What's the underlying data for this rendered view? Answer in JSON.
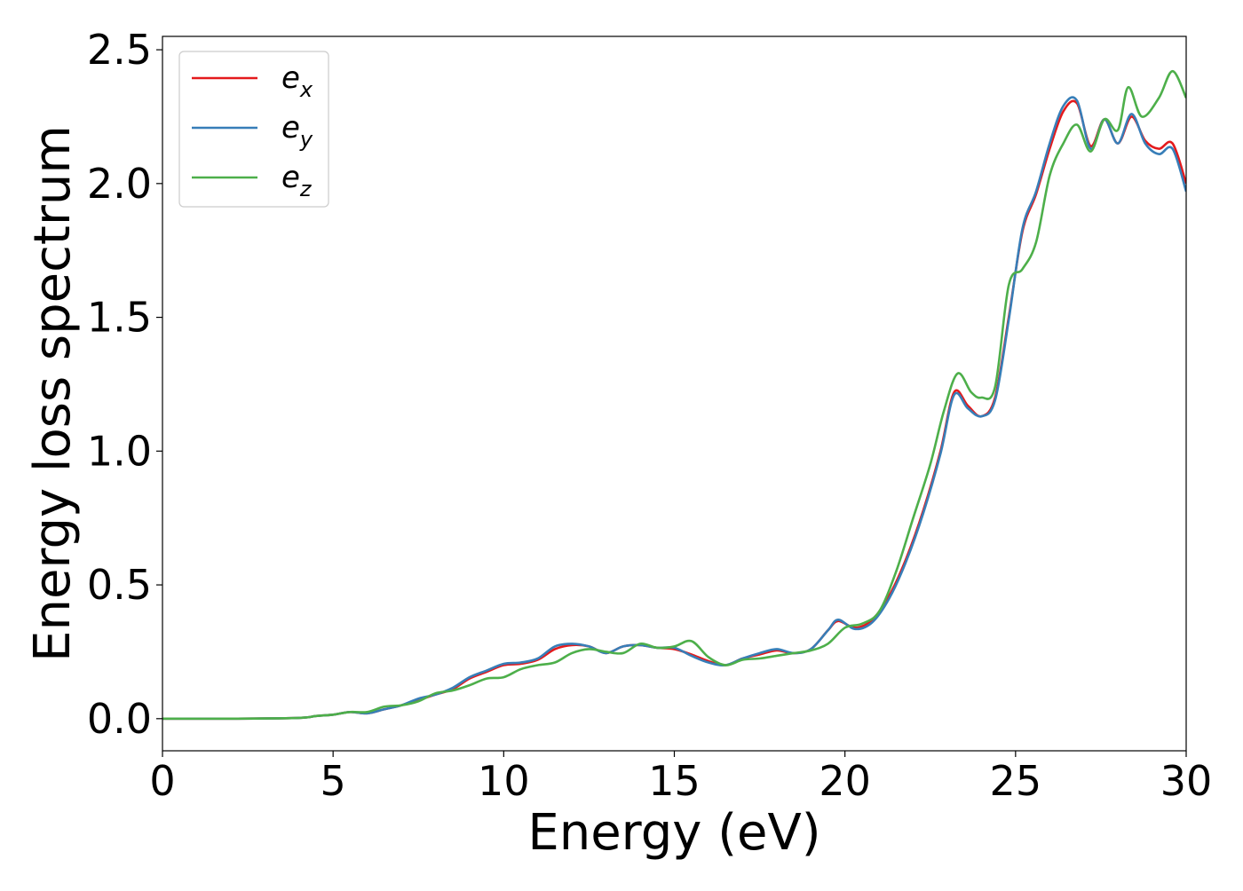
{
  "chart_data": {
    "type": "line",
    "title": "",
    "xlabel": "Energy (eV)",
    "ylabel": "Energy loss spectrum",
    "xlim": [
      0,
      30
    ],
    "ylim": [
      -0.12,
      2.55
    ],
    "xticks": [
      0,
      5,
      10,
      15,
      20,
      25,
      30
    ],
    "xtick_labels": [
      "0",
      "5",
      "10",
      "15",
      "20",
      "25",
      "30"
    ],
    "yticks": [
      0,
      0.5,
      1,
      1.5,
      2,
      2.5
    ],
    "ytick_labels": [
      "0.0",
      "0.5",
      "1.0",
      "1.5",
      "2.0",
      "2.5"
    ],
    "grid": false,
    "legend_position": "top-left",
    "series": [
      {
        "name": "e_x",
        "legend_main": "e",
        "legend_sub": "x",
        "color": "#e41a1c",
        "points": [
          [
            0,
            0
          ],
          [
            2,
            0
          ],
          [
            4,
            0.003
          ],
          [
            4.5,
            0.01
          ],
          [
            5,
            0.015
          ],
          [
            5.5,
            0.025
          ],
          [
            6,
            0.02
          ],
          [
            6.5,
            0.035
          ],
          [
            7,
            0.05
          ],
          [
            7.5,
            0.07
          ],
          [
            8,
            0.09
          ],
          [
            8.5,
            0.11
          ],
          [
            9,
            0.15
          ],
          [
            9.5,
            0.175
          ],
          [
            10,
            0.2
          ],
          [
            10.5,
            0.205
          ],
          [
            11,
            0.22
          ],
          [
            11.5,
            0.26
          ],
          [
            12,
            0.275
          ],
          [
            12.5,
            0.27
          ],
          [
            13,
            0.245
          ],
          [
            13.5,
            0.27
          ],
          [
            14,
            0.275
          ],
          [
            14.5,
            0.265
          ],
          [
            15,
            0.26
          ],
          [
            15.5,
            0.24
          ],
          [
            16,
            0.215
          ],
          [
            16.5,
            0.2
          ],
          [
            17,
            0.225
          ],
          [
            17.5,
            0.24
          ],
          [
            18,
            0.255
          ],
          [
            18.5,
            0.245
          ],
          [
            19,
            0.26
          ],
          [
            19.5,
            0.33
          ],
          [
            19.8,
            0.365
          ],
          [
            20.3,
            0.34
          ],
          [
            20.8,
            0.37
          ],
          [
            21.3,
            0.46
          ],
          [
            21.8,
            0.6
          ],
          [
            22.3,
            0.78
          ],
          [
            22.8,
            1.0
          ],
          [
            23.2,
            1.22
          ],
          [
            23.6,
            1.17
          ],
          [
            24,
            1.13
          ],
          [
            24.4,
            1.2
          ],
          [
            24.8,
            1.5
          ],
          [
            25.2,
            1.82
          ],
          [
            25.6,
            1.96
          ],
          [
            26,
            2.13
          ],
          [
            26.4,
            2.27
          ],
          [
            26.8,
            2.3
          ],
          [
            27.2,
            2.14
          ],
          [
            27.6,
            2.24
          ],
          [
            28,
            2.15
          ],
          [
            28.4,
            2.25
          ],
          [
            28.8,
            2.16
          ],
          [
            29.2,
            2.13
          ],
          [
            29.6,
            2.15
          ],
          [
            30,
            2.0
          ]
        ]
      },
      {
        "name": "e_y",
        "legend_main": "e",
        "legend_sub": "y",
        "color": "#377eb8",
        "points": [
          [
            0,
            0
          ],
          [
            2,
            0
          ],
          [
            4,
            0.003
          ],
          [
            4.5,
            0.01
          ],
          [
            5,
            0.015
          ],
          [
            5.5,
            0.025
          ],
          [
            6,
            0.02
          ],
          [
            6.5,
            0.035
          ],
          [
            7,
            0.05
          ],
          [
            7.5,
            0.075
          ],
          [
            8,
            0.09
          ],
          [
            8.5,
            0.115
          ],
          [
            9,
            0.155
          ],
          [
            9.5,
            0.18
          ],
          [
            10,
            0.205
          ],
          [
            10.5,
            0.21
          ],
          [
            11,
            0.225
          ],
          [
            11.5,
            0.27
          ],
          [
            12,
            0.28
          ],
          [
            12.5,
            0.27
          ],
          [
            13,
            0.245
          ],
          [
            13.5,
            0.27
          ],
          [
            14,
            0.275
          ],
          [
            14.5,
            0.265
          ],
          [
            15,
            0.265
          ],
          [
            15.5,
            0.235
          ],
          [
            16,
            0.21
          ],
          [
            16.5,
            0.2
          ],
          [
            17,
            0.225
          ],
          [
            17.5,
            0.245
          ],
          [
            18,
            0.26
          ],
          [
            18.5,
            0.245
          ],
          [
            19,
            0.26
          ],
          [
            19.5,
            0.33
          ],
          [
            19.8,
            0.37
          ],
          [
            20.3,
            0.335
          ],
          [
            20.8,
            0.36
          ],
          [
            21.3,
            0.45
          ],
          [
            21.8,
            0.59
          ],
          [
            22.3,
            0.77
          ],
          [
            22.8,
            0.99
          ],
          [
            23.2,
            1.21
          ],
          [
            23.6,
            1.16
          ],
          [
            24,
            1.13
          ],
          [
            24.4,
            1.19
          ],
          [
            24.8,
            1.49
          ],
          [
            25.2,
            1.83
          ],
          [
            25.6,
            1.97
          ],
          [
            26,
            2.15
          ],
          [
            26.4,
            2.29
          ],
          [
            26.8,
            2.31
          ],
          [
            27.2,
            2.13
          ],
          [
            27.6,
            2.24
          ],
          [
            28,
            2.15
          ],
          [
            28.4,
            2.26
          ],
          [
            28.8,
            2.15
          ],
          [
            29.2,
            2.11
          ],
          [
            29.6,
            2.13
          ],
          [
            30,
            1.97
          ]
        ]
      },
      {
        "name": "e_z",
        "legend_main": "e",
        "legend_sub": "z",
        "color": "#4daf4a",
        "points": [
          [
            0,
            0
          ],
          [
            2,
            0
          ],
          [
            4,
            0.003
          ],
          [
            4.5,
            0.01
          ],
          [
            5,
            0.015
          ],
          [
            5.5,
            0.025
          ],
          [
            6,
            0.025
          ],
          [
            6.5,
            0.045
          ],
          [
            7,
            0.05
          ],
          [
            7.5,
            0.065
          ],
          [
            8,
            0.095
          ],
          [
            8.5,
            0.105
          ],
          [
            9,
            0.125
          ],
          [
            9.5,
            0.15
          ],
          [
            10,
            0.155
          ],
          [
            10.5,
            0.185
          ],
          [
            11,
            0.2
          ],
          [
            11.5,
            0.21
          ],
          [
            12,
            0.245
          ],
          [
            12.5,
            0.26
          ],
          [
            13,
            0.25
          ],
          [
            13.5,
            0.245
          ],
          [
            14,
            0.28
          ],
          [
            14.5,
            0.265
          ],
          [
            15,
            0.27
          ],
          [
            15.5,
            0.29
          ],
          [
            16,
            0.23
          ],
          [
            16.5,
            0.2
          ],
          [
            17,
            0.22
          ],
          [
            17.5,
            0.225
          ],
          [
            18,
            0.235
          ],
          [
            18.5,
            0.245
          ],
          [
            19,
            0.255
          ],
          [
            19.5,
            0.28
          ],
          [
            20,
            0.34
          ],
          [
            20.5,
            0.355
          ],
          [
            21,
            0.4
          ],
          [
            21.5,
            0.55
          ],
          [
            22,
            0.75
          ],
          [
            22.5,
            0.95
          ],
          [
            22.9,
            1.15
          ],
          [
            23.3,
            1.29
          ],
          [
            23.7,
            1.22
          ],
          [
            24,
            1.2
          ],
          [
            24.4,
            1.24
          ],
          [
            24.8,
            1.62
          ],
          [
            25.2,
            1.68
          ],
          [
            25.6,
            1.78
          ],
          [
            26,
            2.03
          ],
          [
            26.4,
            2.15
          ],
          [
            26.8,
            2.22
          ],
          [
            27.2,
            2.12
          ],
          [
            27.6,
            2.24
          ],
          [
            28,
            2.2
          ],
          [
            28.3,
            2.36
          ],
          [
            28.7,
            2.25
          ],
          [
            29.2,
            2.32
          ],
          [
            29.6,
            2.42
          ],
          [
            30,
            2.32
          ]
        ]
      }
    ]
  }
}
